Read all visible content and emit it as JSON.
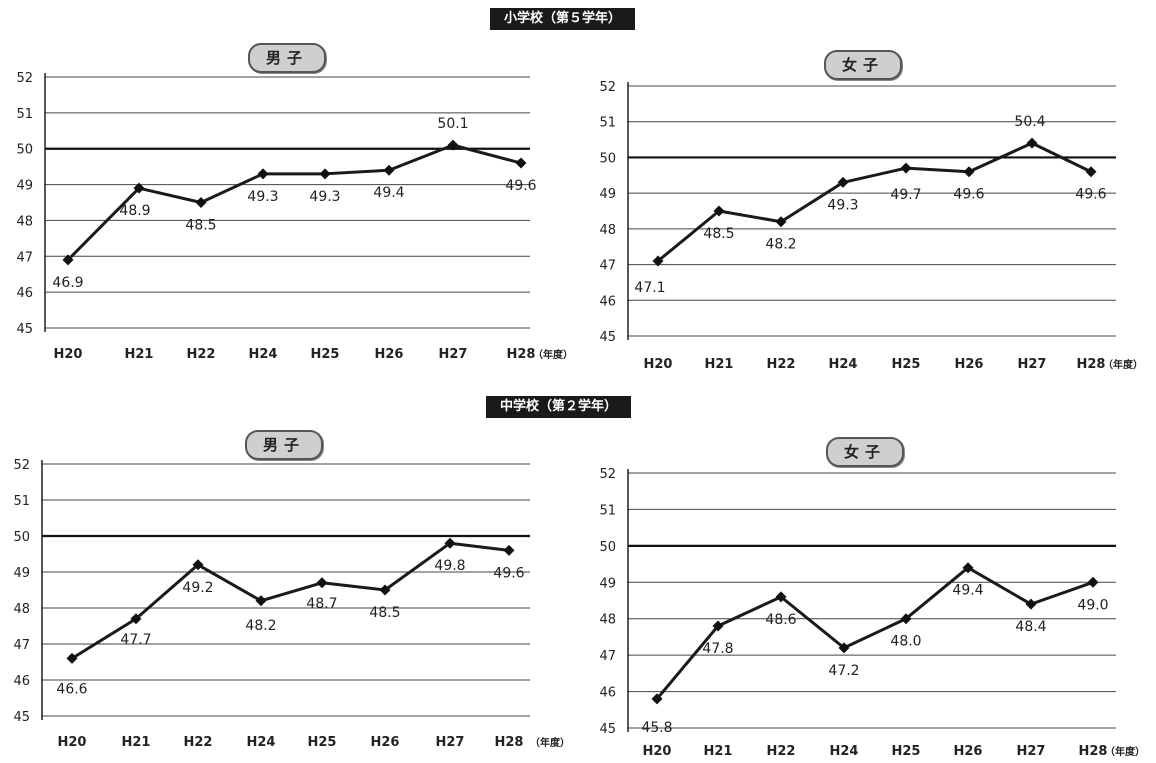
{
  "sections": [
    {
      "title": "小学校（第５学年）"
    },
    {
      "title": "中学校（第２学年）"
    }
  ],
  "chart_data": [
    {
      "type": "line",
      "badge": "男子",
      "categories": [
        "H20",
        "H21",
        "H22",
        "H24",
        "H25",
        "H26",
        "H27",
        "H28"
      ],
      "x_unit": "（年度）",
      "values": [
        46.9,
        48.9,
        48.5,
        49.3,
        49.3,
        49.4,
        50.1,
        49.6
      ],
      "labels": [
        "46.9",
        "48.9",
        "48.5",
        "49.3",
        "49.3",
        "49.4",
        "50.1",
        "49.6"
      ],
      "ylim": [
        45,
        52
      ],
      "yticks": [
        45,
        46,
        47,
        48,
        49,
        50,
        51,
        52
      ],
      "reference_line": 50,
      "grid": true,
      "line_color": "#1a1a1a"
    },
    {
      "type": "line",
      "badge": "女子",
      "categories": [
        "H20",
        "H21",
        "H22",
        "H24",
        "H25",
        "H26",
        "H27",
        "H28"
      ],
      "x_unit": "（年度）",
      "values": [
        47.1,
        48.5,
        48.2,
        49.3,
        49.7,
        49.6,
        50.4,
        49.6
      ],
      "labels": [
        "47.1",
        "48.5",
        "48.2",
        "49.3",
        "49.7",
        "49.6",
        "50.4",
        "49.6"
      ],
      "ylim": [
        45,
        52
      ],
      "yticks": [
        45,
        46,
        47,
        48,
        49,
        50,
        51,
        52
      ],
      "reference_line": 50,
      "grid": true,
      "line_color": "#1a1a1a"
    },
    {
      "type": "line",
      "badge": "男子",
      "categories": [
        "H20",
        "H21",
        "H22",
        "H24",
        "H25",
        "H26",
        "H27",
        "H28"
      ],
      "x_unit": "（年度）",
      "values": [
        46.6,
        47.7,
        49.2,
        48.2,
        48.7,
        48.5,
        49.8,
        49.6
      ],
      "labels": [
        "46.6",
        "47.7",
        "49.2",
        "48.2",
        "48.7",
        "48.5",
        "49.8",
        "49.6"
      ],
      "ylim": [
        45,
        52
      ],
      "yticks": [
        45,
        46,
        47,
        48,
        49,
        50,
        51,
        52
      ],
      "reference_line": 50,
      "grid": true,
      "line_color": "#1a1a1a"
    },
    {
      "type": "line",
      "badge": "女子",
      "categories": [
        "H20",
        "H21",
        "H22",
        "H24",
        "H25",
        "H26",
        "H27",
        "H28"
      ],
      "x_unit": "（年度）",
      "values": [
        45.8,
        47.8,
        48.6,
        47.2,
        48.0,
        49.4,
        48.4,
        49.0
      ],
      "labels": [
        "45.8",
        "47.8",
        "48.6",
        "47.2",
        "48.0",
        "49.4",
        "48.4",
        "49.0"
      ],
      "ylim": [
        45,
        52
      ],
      "yticks": [
        45,
        46,
        47,
        48,
        49,
        50,
        51,
        52
      ],
      "reference_line": 50,
      "grid": true,
      "line_color": "#1a1a1a"
    }
  ]
}
